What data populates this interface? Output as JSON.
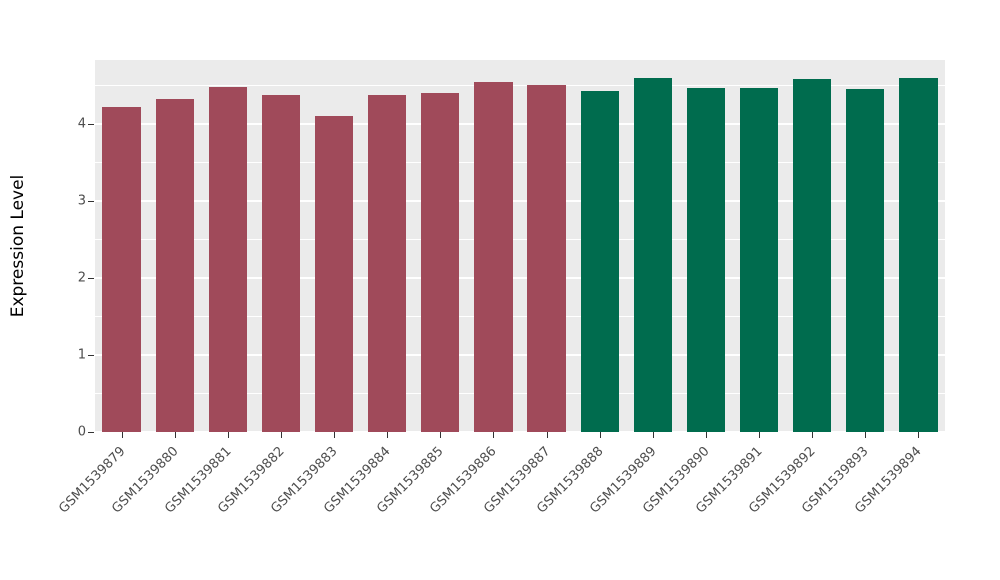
{
  "chart_data": {
    "type": "bar",
    "title": "",
    "xlabel": "",
    "ylabel": "Expression Level",
    "ylim": [
      0,
      4.83
    ],
    "y_major_ticks": [
      0,
      1,
      2,
      3,
      4
    ],
    "y_minor_ticks": [
      0.5,
      1.5,
      2.5,
      3.5,
      4.5
    ],
    "grid": true,
    "legend_position": "none",
    "categories": [
      "GSM1539879",
      "GSM1539880",
      "GSM1539881",
      "GSM1539882",
      "GSM1539883",
      "GSM1539884",
      "GSM1539885",
      "GSM1539886",
      "GSM1539887",
      "GSM1539888",
      "GSM1539889",
      "GSM1539890",
      "GSM1539891",
      "GSM1539892",
      "GSM1539893",
      "GSM1539894"
    ],
    "values": [
      4.22,
      4.33,
      4.48,
      4.38,
      4.1,
      4.37,
      4.4,
      4.55,
      4.5,
      4.43,
      4.6,
      4.47,
      4.47,
      4.58,
      4.45,
      4.6
    ],
    "bar_colors": [
      "#A04A5A",
      "#A04A5A",
      "#A04A5A",
      "#A04A5A",
      "#A04A5A",
      "#A04A5A",
      "#A04A5A",
      "#A04A5A",
      "#A04A5A",
      "#006C4E",
      "#006C4E",
      "#006C4E",
      "#006C4E",
      "#006C4E",
      "#006C4E",
      "#006C4E"
    ],
    "group_colors": {
      "group1_color": "#A04A5A",
      "group2_color": "#006C4E"
    },
    "panel_background": "#EBEBEB",
    "gridline_color": "#FFFFFF"
  }
}
